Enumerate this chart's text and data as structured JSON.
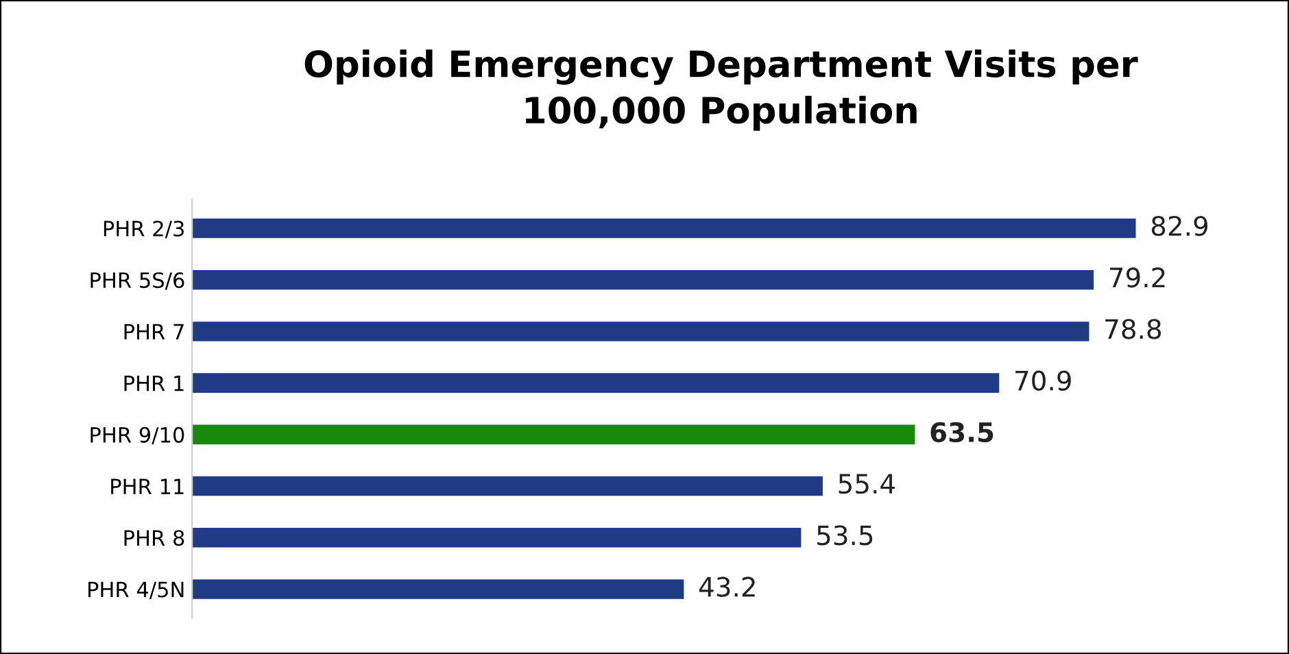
{
  "chart_data": {
    "type": "bar",
    "orientation": "horizontal",
    "title": "Opioid Emergency Department Visits per\n100,000 Population",
    "categories": [
      "PHR 2/3",
      "PHR 5S/6",
      "PHR 7",
      "PHR 1",
      "PHR 9/10",
      "PHR 11",
      "PHR 8",
      "PHR 4/5N"
    ],
    "values": [
      82.9,
      79.2,
      78.8,
      70.9,
      63.5,
      55.4,
      53.5,
      43.2
    ],
    "colors": [
      "#1f3b85",
      "#1f3b85",
      "#1f3b85",
      "#1f3b85",
      "#178a0b",
      "#1f3b85",
      "#1f3b85",
      "#1f3b85"
    ],
    "data_labels": true,
    "grid": false,
    "legend": false
  }
}
